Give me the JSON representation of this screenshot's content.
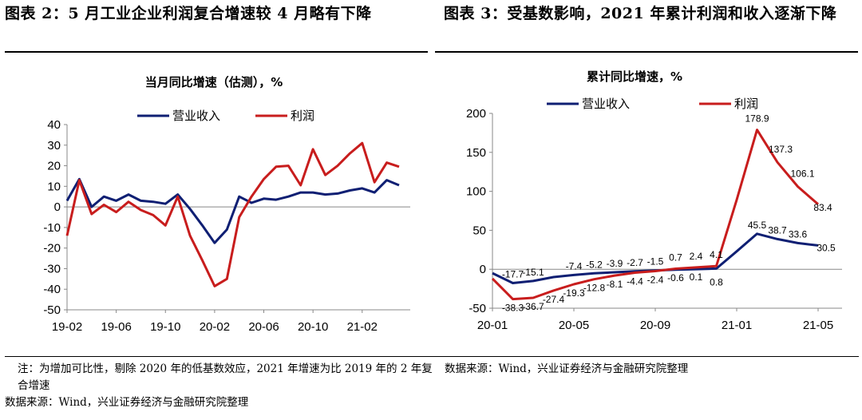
{
  "figure_left": {
    "title": "图表 2：5 月工业企业利润复合增速较 4 月略有下降",
    "note": "注：为增加可比性，剔除 2020 年的低基数效应，2021 年增速为比 2019 年的 2 年复合增速",
    "source": "数据来源：Wind，兴业证券经济与金融研究院整理"
  },
  "figure_right": {
    "title": "图表 3：受基数影响，2021 年累计利润和收入逐渐下降",
    "source": "数据来源：Wind，兴业证券经济与金融研究院整理"
  },
  "chart_data": [
    {
      "type": "line",
      "title": "当月同比增速（估测），%",
      "xlabel": "",
      "ylabel": "",
      "ylim": [
        -50,
        40
      ],
      "yticks": [
        40,
        30,
        20,
        10,
        0,
        -10,
        -20,
        -30,
        -40,
        -50
      ],
      "x": [
        "19-02",
        "19-03",
        "19-04",
        "19-05",
        "19-06",
        "19-07",
        "19-08",
        "19-09",
        "19-10",
        "19-11",
        "19-12",
        "20-01",
        "20-02",
        "20-03",
        "20-04",
        "20-05",
        "20-06",
        "20-07",
        "20-08",
        "20-09",
        "20-10",
        "20-11",
        "20-12",
        "21-01",
        "21-02",
        "21-03",
        "21-04",
        "21-05"
      ],
      "xtick_labels": [
        "19-02",
        "19-06",
        "19-10",
        "20-02",
        "20-06",
        "20-10",
        "21-02"
      ],
      "legend_position": "top",
      "series": [
        {
          "name": "营业收入",
          "color": "#0f1f73",
          "values": [
            3,
            13.5,
            0,
            5,
            3,
            6,
            3,
            2.5,
            1.5,
            6,
            -1,
            -9,
            -17.5,
            -11,
            5,
            2,
            4,
            3.5,
            5,
            7,
            7,
            6,
            6.5,
            8,
            9,
            7,
            13,
            10.5
          ]
        },
        {
          "name": "利润",
          "color": "#c81d1d",
          "values": [
            -14,
            13,
            -3.5,
            1,
            -2.5,
            2.5,
            -1.5,
            -4,
            -9,
            5,
            -14,
            -26,
            -38.5,
            -35,
            -5,
            5,
            13.5,
            19.5,
            20,
            10.5,
            28,
            15.5,
            20,
            26,
            31,
            12,
            21.5,
            19.5
          ]
        }
      ]
    },
    {
      "type": "line",
      "title": "累计同比增速，%",
      "xlabel": "",
      "ylabel": "",
      "ylim": [
        -50,
        200
      ],
      "yticks": [
        200,
        150,
        100,
        50,
        0,
        -50
      ],
      "x": [
        "20-01",
        "20-02",
        "20-03",
        "20-04",
        "20-05",
        "20-06",
        "20-07",
        "20-08",
        "20-09",
        "20-10",
        "20-11",
        "20-12",
        "21-01",
        "21-02",
        "21-03",
        "21-04",
        "21-05"
      ],
      "xtick_labels": [
        "20-01",
        "20-05",
        "20-09",
        "21-01",
        "21-05"
      ],
      "legend_position": "top",
      "series": [
        {
          "name": "营业收入",
          "color": "#0f1f73",
          "values": [
            -5,
            -17.7,
            -15.1,
            -10,
            -7.4,
            -5.2,
            -3.9,
            -2.7,
            -1.5,
            -0.6,
            0.1,
            0.8,
            23,
            45.5,
            38.7,
            33.6,
            30.5
          ]
        },
        {
          "name": "利润",
          "color": "#c81d1d",
          "values": [
            -12,
            -38.3,
            -36.7,
            -27.4,
            -19.3,
            -12.8,
            -8.1,
            -4.4,
            -2.4,
            0.7,
            2.4,
            4.1,
            89,
            178.9,
            137.3,
            106.1,
            83.4
          ]
        }
      ],
      "data_labels": [
        "-17.7",
        "-15.1",
        "-7.4",
        "-5.2",
        "-3.9",
        "-2.7",
        "-1.5",
        "-0.6",
        "0.1",
        "0.8",
        "45.5",
        "38.7",
        "33.6",
        "30.5",
        "-38.3",
        "-36.7",
        "-27.4",
        "-19.3",
        "-12.8",
        "-8.1",
        "-4.4",
        "-2.4",
        "0.7",
        "2.4",
        "4.1",
        "178.9",
        "137.3",
        "106.1",
        "83.4"
      ]
    }
  ]
}
